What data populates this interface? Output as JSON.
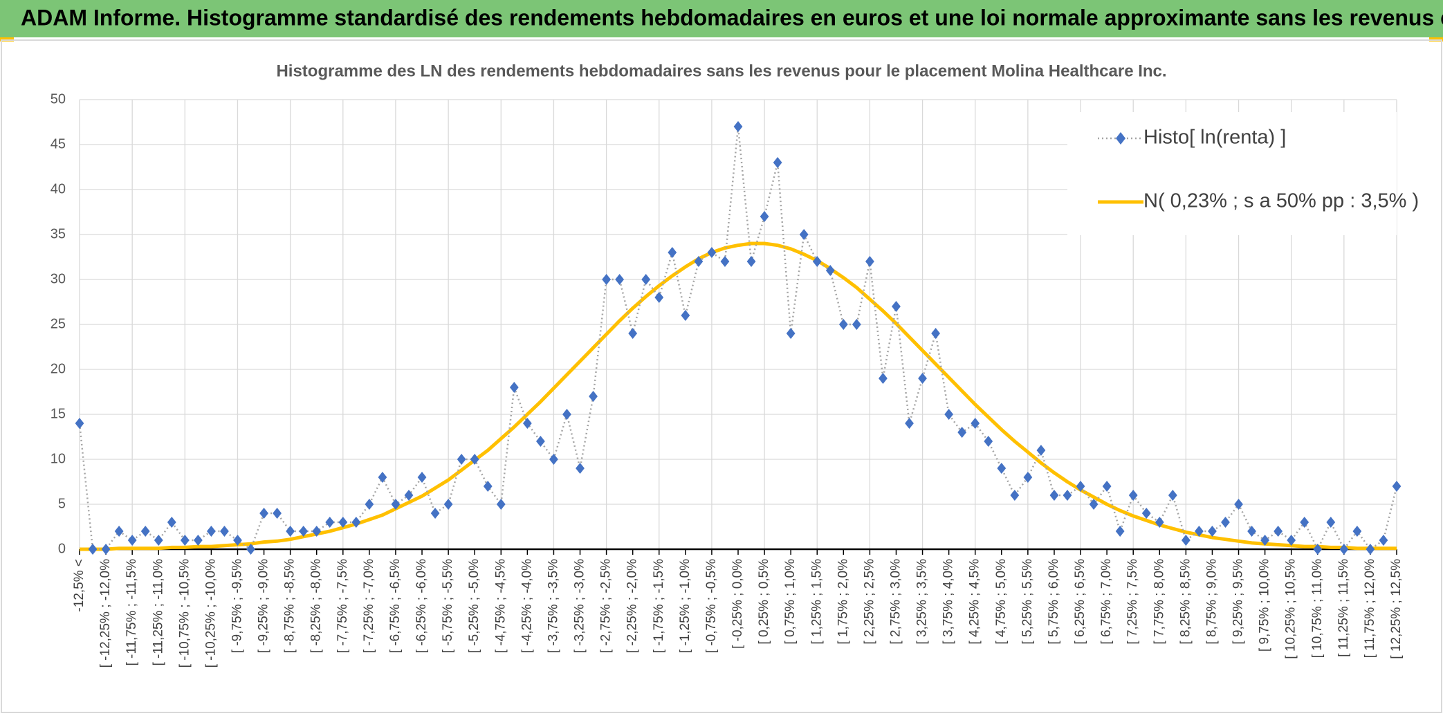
{
  "header": {
    "title": "ADAM Informe. Histogramme standardisé des rendements hebdomadaires en euros et une loi normale approximante sans les revenus éventuels"
  },
  "chart_data": {
    "type": "line",
    "title": "Histogramme des LN des rendements hebdomadaires sans les revenus pour le placement Molina Healthcare Inc.",
    "categories": [
      "-12,5% <",
      null,
      "[ -12,25% ; -12,0%",
      null,
      "[ -11,75% ; -11,5%",
      null,
      "[ -11,25% ; -11,0%",
      null,
      "[ -10,75% ; -10,5%",
      null,
      "[ -10,25% ; -10,0%",
      null,
      "[ -9,75% ; -9,5%",
      null,
      "[ -9,25% ; -9,0%",
      null,
      "[ -8,75% ; -8,5%",
      null,
      "[ -8,25% ; -8,0%",
      null,
      "[ -7,75% ; -7,5%",
      null,
      "[ -7,25% ; -7,0%",
      null,
      "[ -6,75% ; -6,5%",
      null,
      "[ -6,25% ; -6,0%",
      null,
      "[ -5,75% ; -5,5%",
      null,
      "[ -5,25% ; -5,0%",
      null,
      "[ -4,75% ; -4,5%",
      null,
      "[ -4,25% ; -4,0%",
      null,
      "[ -3,75% ; -3,5%",
      null,
      "[ -3,25% ; -3,0%",
      null,
      "[ -2,75% ; -2,5%",
      null,
      "[ -2,25% ; -2,0%",
      null,
      "[ -1,75% ; -1,5%",
      null,
      "[ -1,25% ; -1,0%",
      null,
      "[ -0,75% ; -0,5%",
      null,
      "[ -0,25% ; 0,0%",
      null,
      "[ 0,25% ; 0,5%",
      null,
      "[ 0,75% ; 1,0%",
      null,
      "[ 1,25% ; 1,5%",
      null,
      "[ 1,75% ; 2,0%",
      null,
      "[ 2,25% ; 2,5%",
      null,
      "[ 2,75% ; 3,0%",
      null,
      "[ 3,25% ; 3,5%",
      null,
      "[ 3,75% ; 4,0%",
      null,
      "[ 4,25% ; 4,5%",
      null,
      "[ 4,75% ; 5,0%",
      null,
      "[ 5,25% ; 5,5%",
      null,
      "[ 5,75% ; 6,0%",
      null,
      "[ 6,25% ; 6,5%",
      null,
      "[ 6,75% ; 7,0%",
      null,
      "[ 7,25% ; 7,5%",
      null,
      "[ 7,75% ; 8,0%",
      null,
      "[ 8,25% ; 8,5%",
      null,
      "[ 8,75% ; 9,0%",
      null,
      "[ 9,25% ; 9,5%",
      null,
      "[ 9,75% ; 10,0%",
      null,
      "[ 10,25% ; 10,5%",
      null,
      "[ 10,75% ; 11,0%",
      null,
      "[ 11,25% ; 11,5%",
      null,
      "[ 11,75% ; 12,0%",
      null,
      "[ 12,25% ; 12,5%"
    ],
    "series": [
      {
        "name": "Histo[ ln(renta) ]",
        "color": "#4472c4",
        "line_color": "#a5a5a5",
        "values": [
          14,
          0,
          0,
          2,
          1,
          2,
          1,
          3,
          1,
          1,
          2,
          2,
          1,
          0,
          4,
          4,
          2,
          2,
          2,
          3,
          3,
          3,
          5,
          8,
          5,
          6,
          8,
          4,
          5,
          10,
          10,
          7,
          5,
          18,
          14,
          12,
          10,
          15,
          9,
          17,
          30,
          30,
          24,
          30,
          28,
          33,
          26,
          32,
          33,
          32,
          47,
          32,
          37,
          43,
          24,
          35,
          32,
          31,
          25,
          25,
          32,
          19,
          27,
          14,
          19,
          24,
          15,
          13,
          14,
          12,
          9,
          6,
          8,
          11,
          6,
          6,
          7,
          5,
          7,
          2,
          6,
          4,
          3,
          6,
          1,
          2,
          2,
          3,
          5,
          2,
          1,
          2,
          1,
          3,
          0,
          3,
          0,
          2,
          0,
          1,
          7
        ]
      },
      {
        "name": "N( 0,23% ; s a 50% pp : 3,5% )",
        "color": "#ffc000",
        "values": [
          0.0,
          0.0,
          0.0,
          0.1,
          0.1,
          0.1,
          0.1,
          0.2,
          0.2,
          0.3,
          0.3,
          0.4,
          0.5,
          0.6,
          0.8,
          0.9,
          1.1,
          1.4,
          1.7,
          2.0,
          2.4,
          2.8,
          3.3,
          3.8,
          4.5,
          5.2,
          5.9,
          6.8,
          7.7,
          8.8,
          9.9,
          11.0,
          12.3,
          13.6,
          15.0,
          16.4,
          17.9,
          19.4,
          20.9,
          22.4,
          23.9,
          25.4,
          26.8,
          28.1,
          29.3,
          30.4,
          31.4,
          32.3,
          33.0,
          33.5,
          33.8,
          34.0,
          34.0,
          33.8,
          33.4,
          32.8,
          32.1,
          31.2,
          30.2,
          29.1,
          27.8,
          26.5,
          25.1,
          23.6,
          22.1,
          20.6,
          19.1,
          17.6,
          16.1,
          14.7,
          13.3,
          12.0,
          10.8,
          9.6,
          8.5,
          7.5,
          6.6,
          5.8,
          5.0,
          4.3,
          3.7,
          3.2,
          2.7,
          2.3,
          1.9,
          1.6,
          1.3,
          1.1,
          0.9,
          0.7,
          0.6,
          0.5,
          0.4,
          0.3,
          0.3,
          0.2,
          0.2,
          0.1,
          0.1,
          0.1,
          0.1
        ]
      }
    ],
    "ylim": [
      0,
      50
    ],
    "yticks": [
      0,
      5,
      10,
      15,
      20,
      25,
      30,
      35,
      40,
      45,
      50
    ],
    "grid": true,
    "legend": "top-right"
  }
}
